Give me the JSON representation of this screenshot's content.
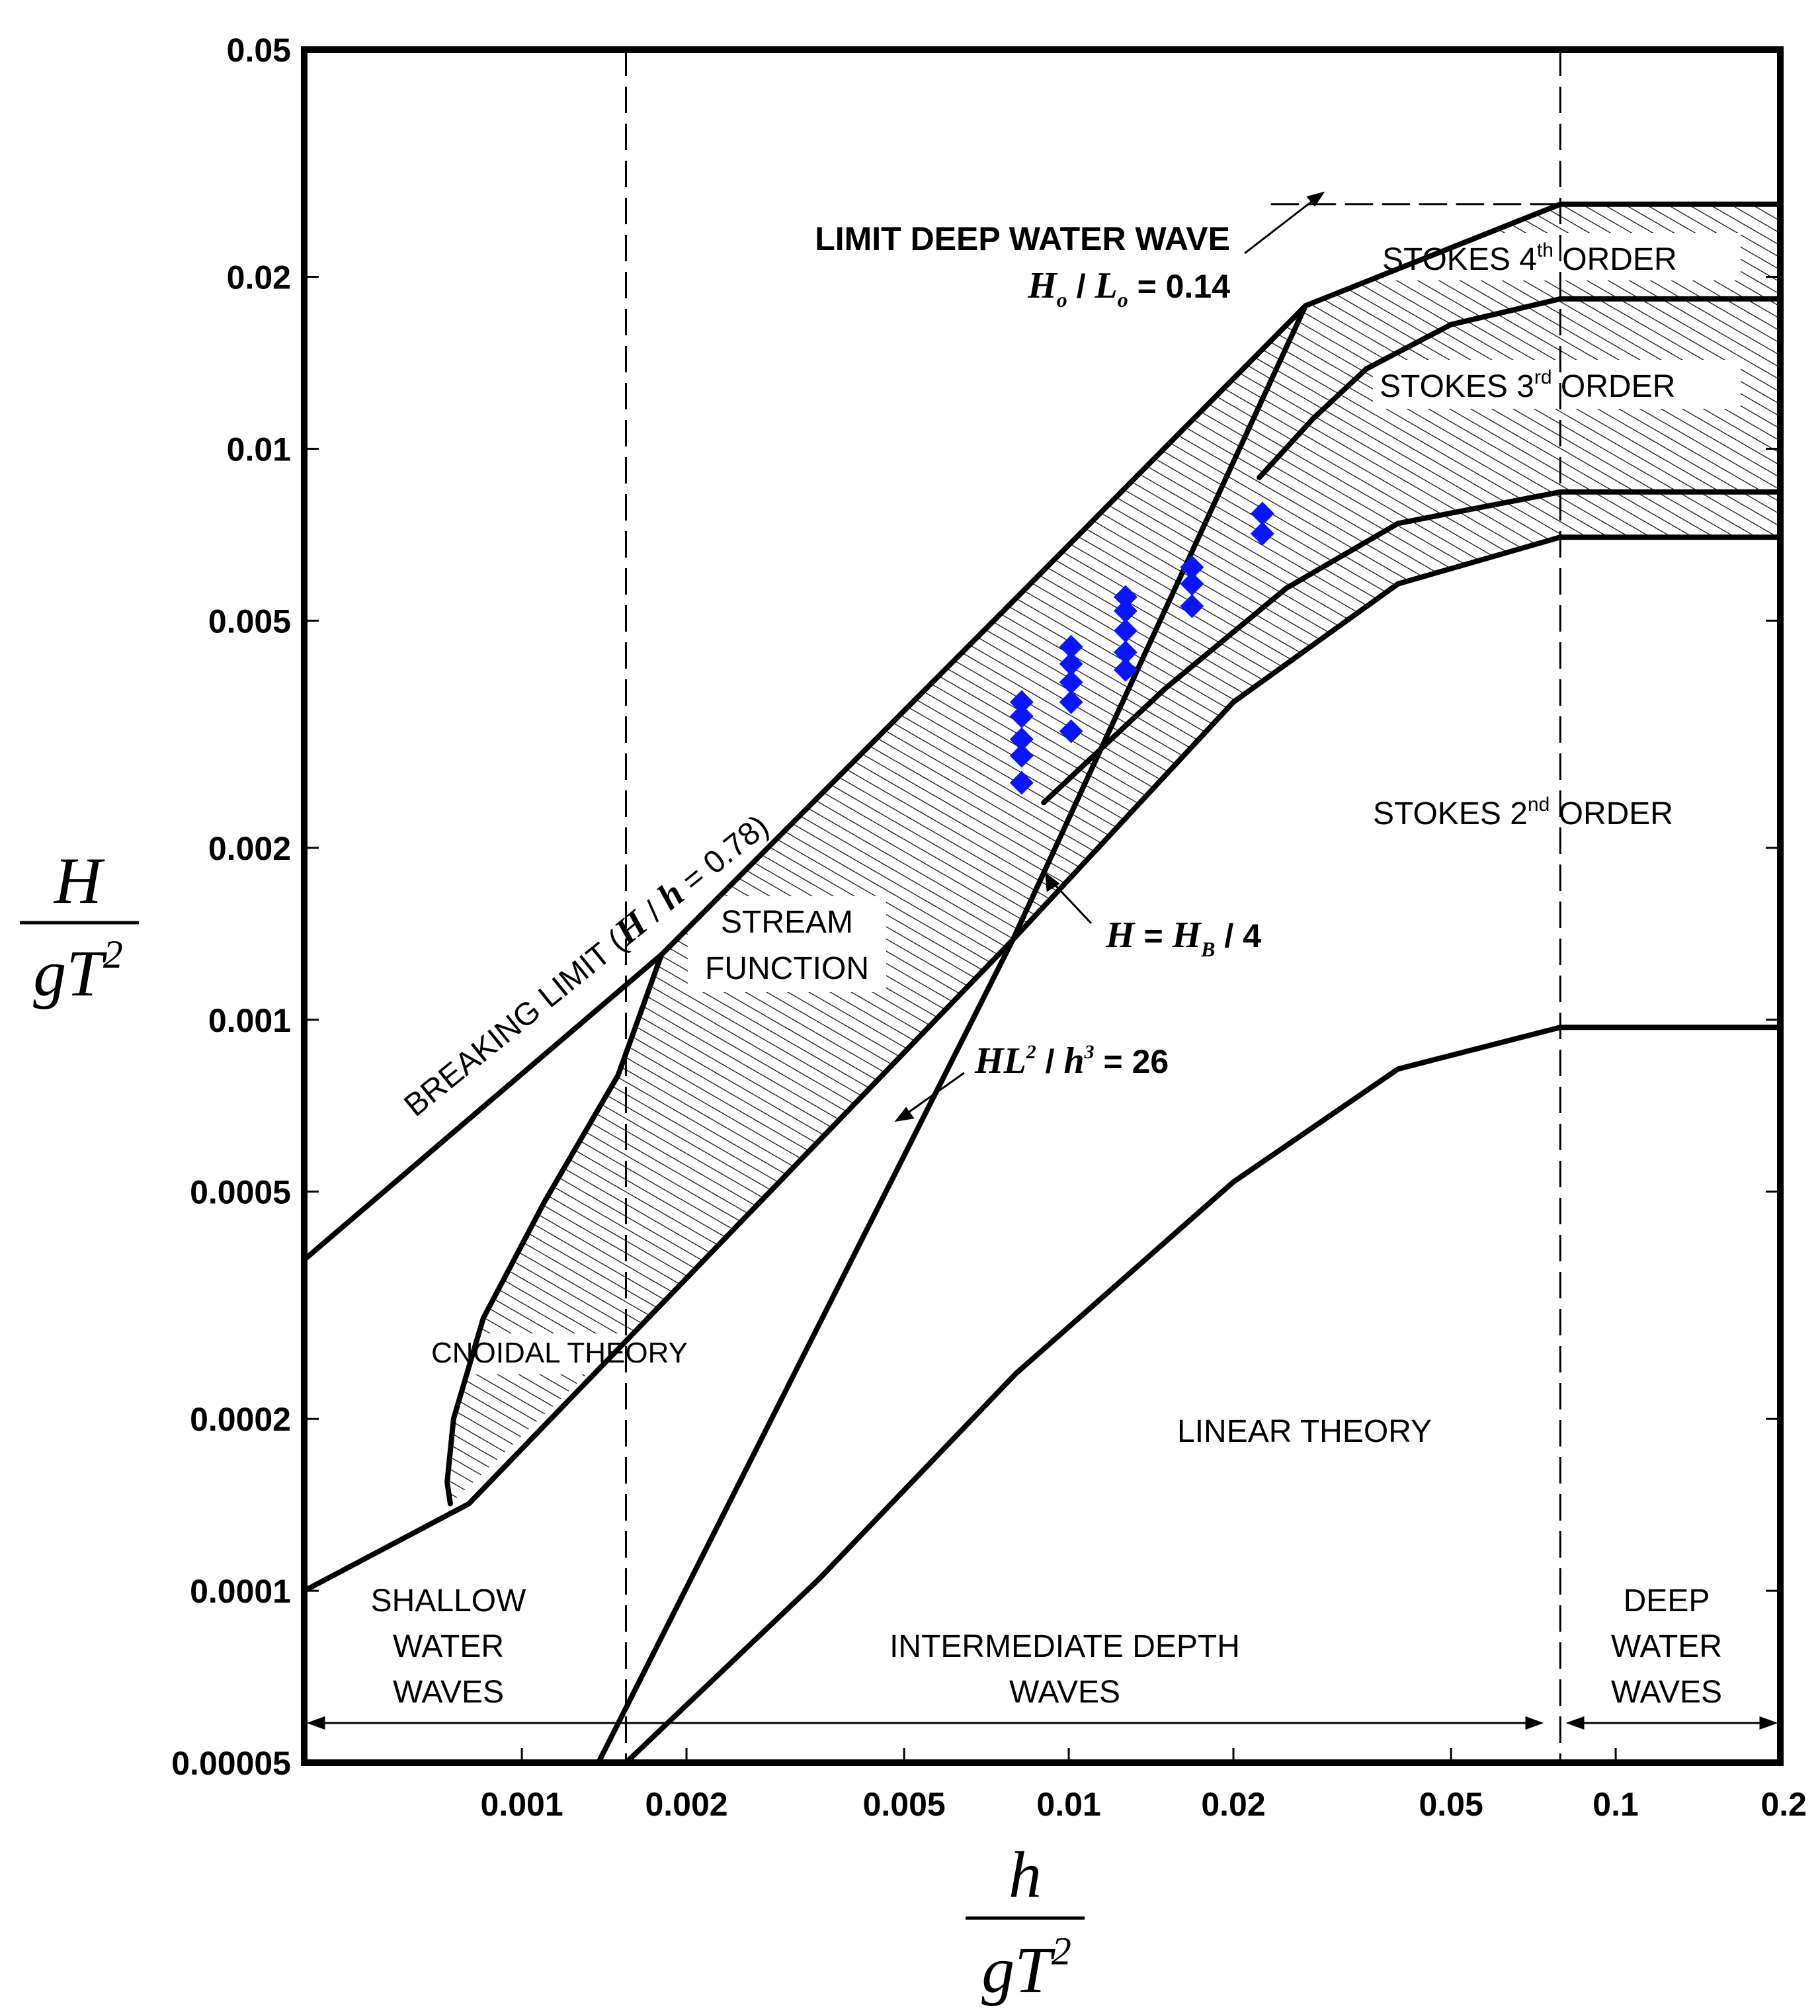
{
  "chart_data": {
    "type": "line",
    "title": "",
    "x_scale": "log",
    "y_scale": "log",
    "xlim": [
      0.0004,
      0.2
    ],
    "ylim": [
      5e-05,
      0.05
    ],
    "x_ticks": [
      {
        "value": 0.001,
        "label": "0.001"
      },
      {
        "value": 0.002,
        "label": "0.002"
      },
      {
        "value": 0.005,
        "label": "0.005"
      },
      {
        "value": 0.01,
        "label": "0.01"
      },
      {
        "value": 0.02,
        "label": "0.02"
      },
      {
        "value": 0.05,
        "label": "0.05"
      },
      {
        "value": 0.1,
        "label": "0.1"
      },
      {
        "value": 0.2,
        "label": "0.2"
      }
    ],
    "y_ticks": [
      {
        "value": 0.05,
        "label": "0.05"
      },
      {
        "value": 0.02,
        "label": "0.02"
      },
      {
        "value": 0.01,
        "label": "0.01"
      },
      {
        "value": 0.005,
        "label": "0.005"
      },
      {
        "value": 0.002,
        "label": "0.002"
      },
      {
        "value": 0.001,
        "label": "0.001"
      },
      {
        "value": 0.0005,
        "label": "0.0005"
      },
      {
        "value": 0.0002,
        "label": "0.0002"
      },
      {
        "value": 0.0001,
        "label": "0.0001"
      },
      {
        "value": 5e-05,
        "label": "0.00005"
      }
    ],
    "xlabel": {
      "numerator": "h",
      "denominator_g": "g",
      "denominator_T": "T",
      "exponent": "2"
    },
    "ylabel": {
      "numerator": "H",
      "denominator_g": "g",
      "denominator_T": "T",
      "exponent": "2"
    },
    "depth_boundaries": [
      0.00155,
      0.0792
    ],
    "series": [
      {
        "name": "Breaking limit (H/h = 0.78)",
        "points": [
          [
            0.0004,
            0.00038
          ],
          [
            0.0018,
            0.0013
          ],
          [
            0.0079,
            0.0054
          ],
          [
            0.0271,
            0.0178
          ],
          [
            0.0792,
            0.0268
          ],
          [
            0.2,
            0.0268
          ]
        ]
      },
      {
        "name": "Stokes 3rd/4th order boundary",
        "points": [
          [
            0.0223,
            0.0089
          ],
          [
            0.028,
            0.0113
          ],
          [
            0.035,
            0.0138
          ],
          [
            0.05,
            0.0165
          ],
          [
            0.0792,
            0.0183
          ],
          [
            0.2,
            0.0183
          ]
        ]
      },
      {
        "name": "Stokes 2nd/3rd order boundary",
        "points": [
          [
            0.009,
            0.0024
          ],
          [
            0.015,
            0.0038
          ],
          [
            0.025,
            0.0057
          ],
          [
            0.04,
            0.0074
          ],
          [
            0.0792,
            0.0084
          ],
          [
            0.2,
            0.0084
          ]
        ]
      },
      {
        "name": "H = HB / 4",
        "points": [
          [
            0.0004,
            0.0001
          ],
          [
            0.0008,
            0.000142
          ],
          [
            0.0019,
            0.000335
          ],
          [
            0.0079,
            0.00138
          ],
          [
            0.02,
            0.0036
          ],
          [
            0.04,
            0.0058
          ],
          [
            0.0792,
            0.007
          ],
          [
            0.2,
            0.007
          ]
        ]
      },
      {
        "name": "HL² / h³ = 26",
        "points": [
          [
            0.00138,
            5e-05
          ],
          [
            0.0079,
            0.00138
          ],
          [
            0.0271,
            0.0178
          ]
        ]
      },
      {
        "name": "Cnoidal theory envelope",
        "points": [
          [
            0.0018,
            0.0013
          ],
          [
            0.0015,
            0.0008
          ],
          [
            0.0011,
            0.00048
          ],
          [
            0.00085,
            0.0003
          ],
          [
            0.00075,
            0.0002
          ],
          [
            0.00073,
            0.000155
          ],
          [
            0.00074,
            0.000142
          ]
        ]
      },
      {
        "name": "Linear theory limit",
        "points": [
          [
            0.00155,
            5e-05
          ],
          [
            0.0035,
            0.000105
          ],
          [
            0.008,
            0.00024
          ],
          [
            0.02,
            0.00052
          ],
          [
            0.04,
            0.00082
          ],
          [
            0.0792,
            0.00097
          ],
          [
            0.2,
            0.00097
          ]
        ]
      },
      {
        "name": "Limit deep water wave Ho / Lo = 0.14 (dashed)",
        "points": [
          [
            0.0235,
            0.0268
          ],
          [
            0.0792,
            0.0268
          ]
        ]
      }
    ],
    "data_points": [
      [
        0.0082,
        0.0036
      ],
      [
        0.0082,
        0.0034
      ],
      [
        0.0082,
        0.0031
      ],
      [
        0.0082,
        0.0029
      ],
      [
        0.0082,
        0.0026
      ],
      [
        0.0101,
        0.0045
      ],
      [
        0.0101,
        0.0042
      ],
      [
        0.0101,
        0.0039
      ],
      [
        0.0101,
        0.0036
      ],
      [
        0.0101,
        0.0032
      ],
      [
        0.0127,
        0.0055
      ],
      [
        0.0127,
        0.0052
      ],
      [
        0.0127,
        0.0048
      ],
      [
        0.0127,
        0.0044
      ],
      [
        0.0127,
        0.0041
      ],
      [
        0.0168,
        0.0062
      ],
      [
        0.0168,
        0.0058
      ],
      [
        0.0168,
        0.0053
      ],
      [
        0.0226,
        0.0077
      ],
      [
        0.0226,
        0.0071
      ]
    ],
    "marker_color": "#0a14ff",
    "annotations": {
      "limit_deep_1": "LIMIT DEEP WATER WAVE",
      "limit_deep_H": "H",
      "limit_deep_o1": "o",
      "limit_deep_slash": " / ",
      "limit_deep_L": "L",
      "limit_deep_o2": "o",
      "limit_deep_val": " = 0.14",
      "stokes4_pre": "STOKES 4",
      "stokes4_sup": "th",
      "stokes4_post": " ORDER",
      "stokes3_pre": "STOKES 3",
      "stokes3_sup": "rd",
      "stokes3_post": " ORDER",
      "stokes2_pre": "STOKES 2",
      "stokes2_sup": "nd",
      "stokes2_post": " ORDER",
      "stream_1": "STREAM",
      "stream_2": "FUNCTION",
      "breaking_pre": "BREAKING LIMIT (",
      "breaking_H": "H",
      "breaking_slash": " / ",
      "breaking_h": "h",
      "breaking_val": " = 0.78)",
      "hb_H": "H",
      "hb_eq": " = ",
      "hb_HB": "H",
      "hb_B": "B",
      "hb_post": " / 4",
      "hl_H": "HL",
      "hl_sq": "2",
      "hl_slash": " / ",
      "hl_h": "h",
      "hl_cube": "3",
      "hl_post": " = 26",
      "cnoidal": "CNOIDAL  THEORY",
      "linear": "LINEAR  THEORY",
      "shallow_1": "SHALLOW",
      "shallow_2": "WATER",
      "shallow_3": "WAVES",
      "inter_1": "INTERMEDIATE DEPTH",
      "inter_2": "WAVES",
      "deep_1": "DEEP",
      "deep_2": "WATER",
      "deep_3": "WAVES"
    }
  }
}
